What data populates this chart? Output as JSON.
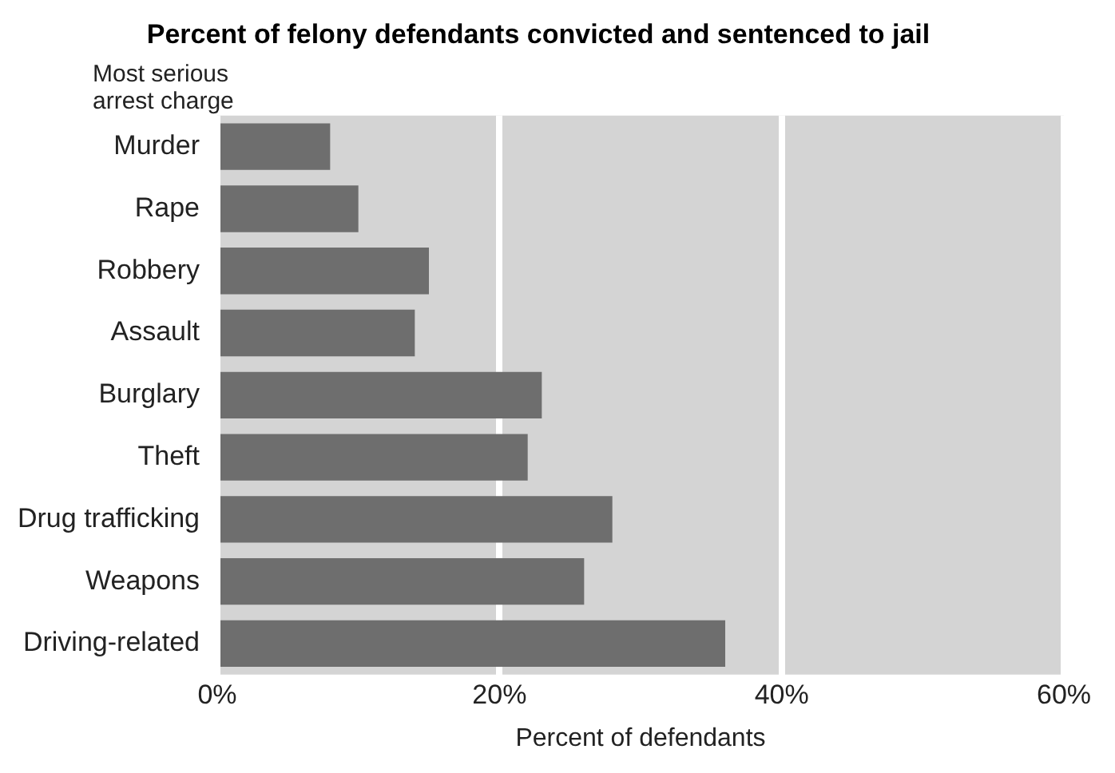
{
  "chart_data": {
    "type": "bar",
    "orientation": "horizontal",
    "title": "Percent of felony defendants convicted and sentenced to jail",
    "ylabel": "Most serious arrest charge",
    "xlabel": "Percent of defendants",
    "categories": [
      "Murder",
      "Rape",
      "Robbery",
      "Assault",
      "Burglary",
      "Theft",
      "Drug trafficking",
      "Weapons",
      "Driving-related"
    ],
    "values": [
      8,
      10,
      15,
      14,
      23,
      22,
      28,
      26,
      36
    ],
    "color": "#6e6e6e",
    "xlim": [
      0,
      60
    ],
    "xticks": [
      {
        "value": 0,
        "label": "0%"
      },
      {
        "value": 20,
        "label": "20%"
      },
      {
        "value": 40,
        "label": "40%"
      },
      {
        "value": 60,
        "label": "60%"
      }
    ],
    "grid": "x",
    "legend": false
  }
}
